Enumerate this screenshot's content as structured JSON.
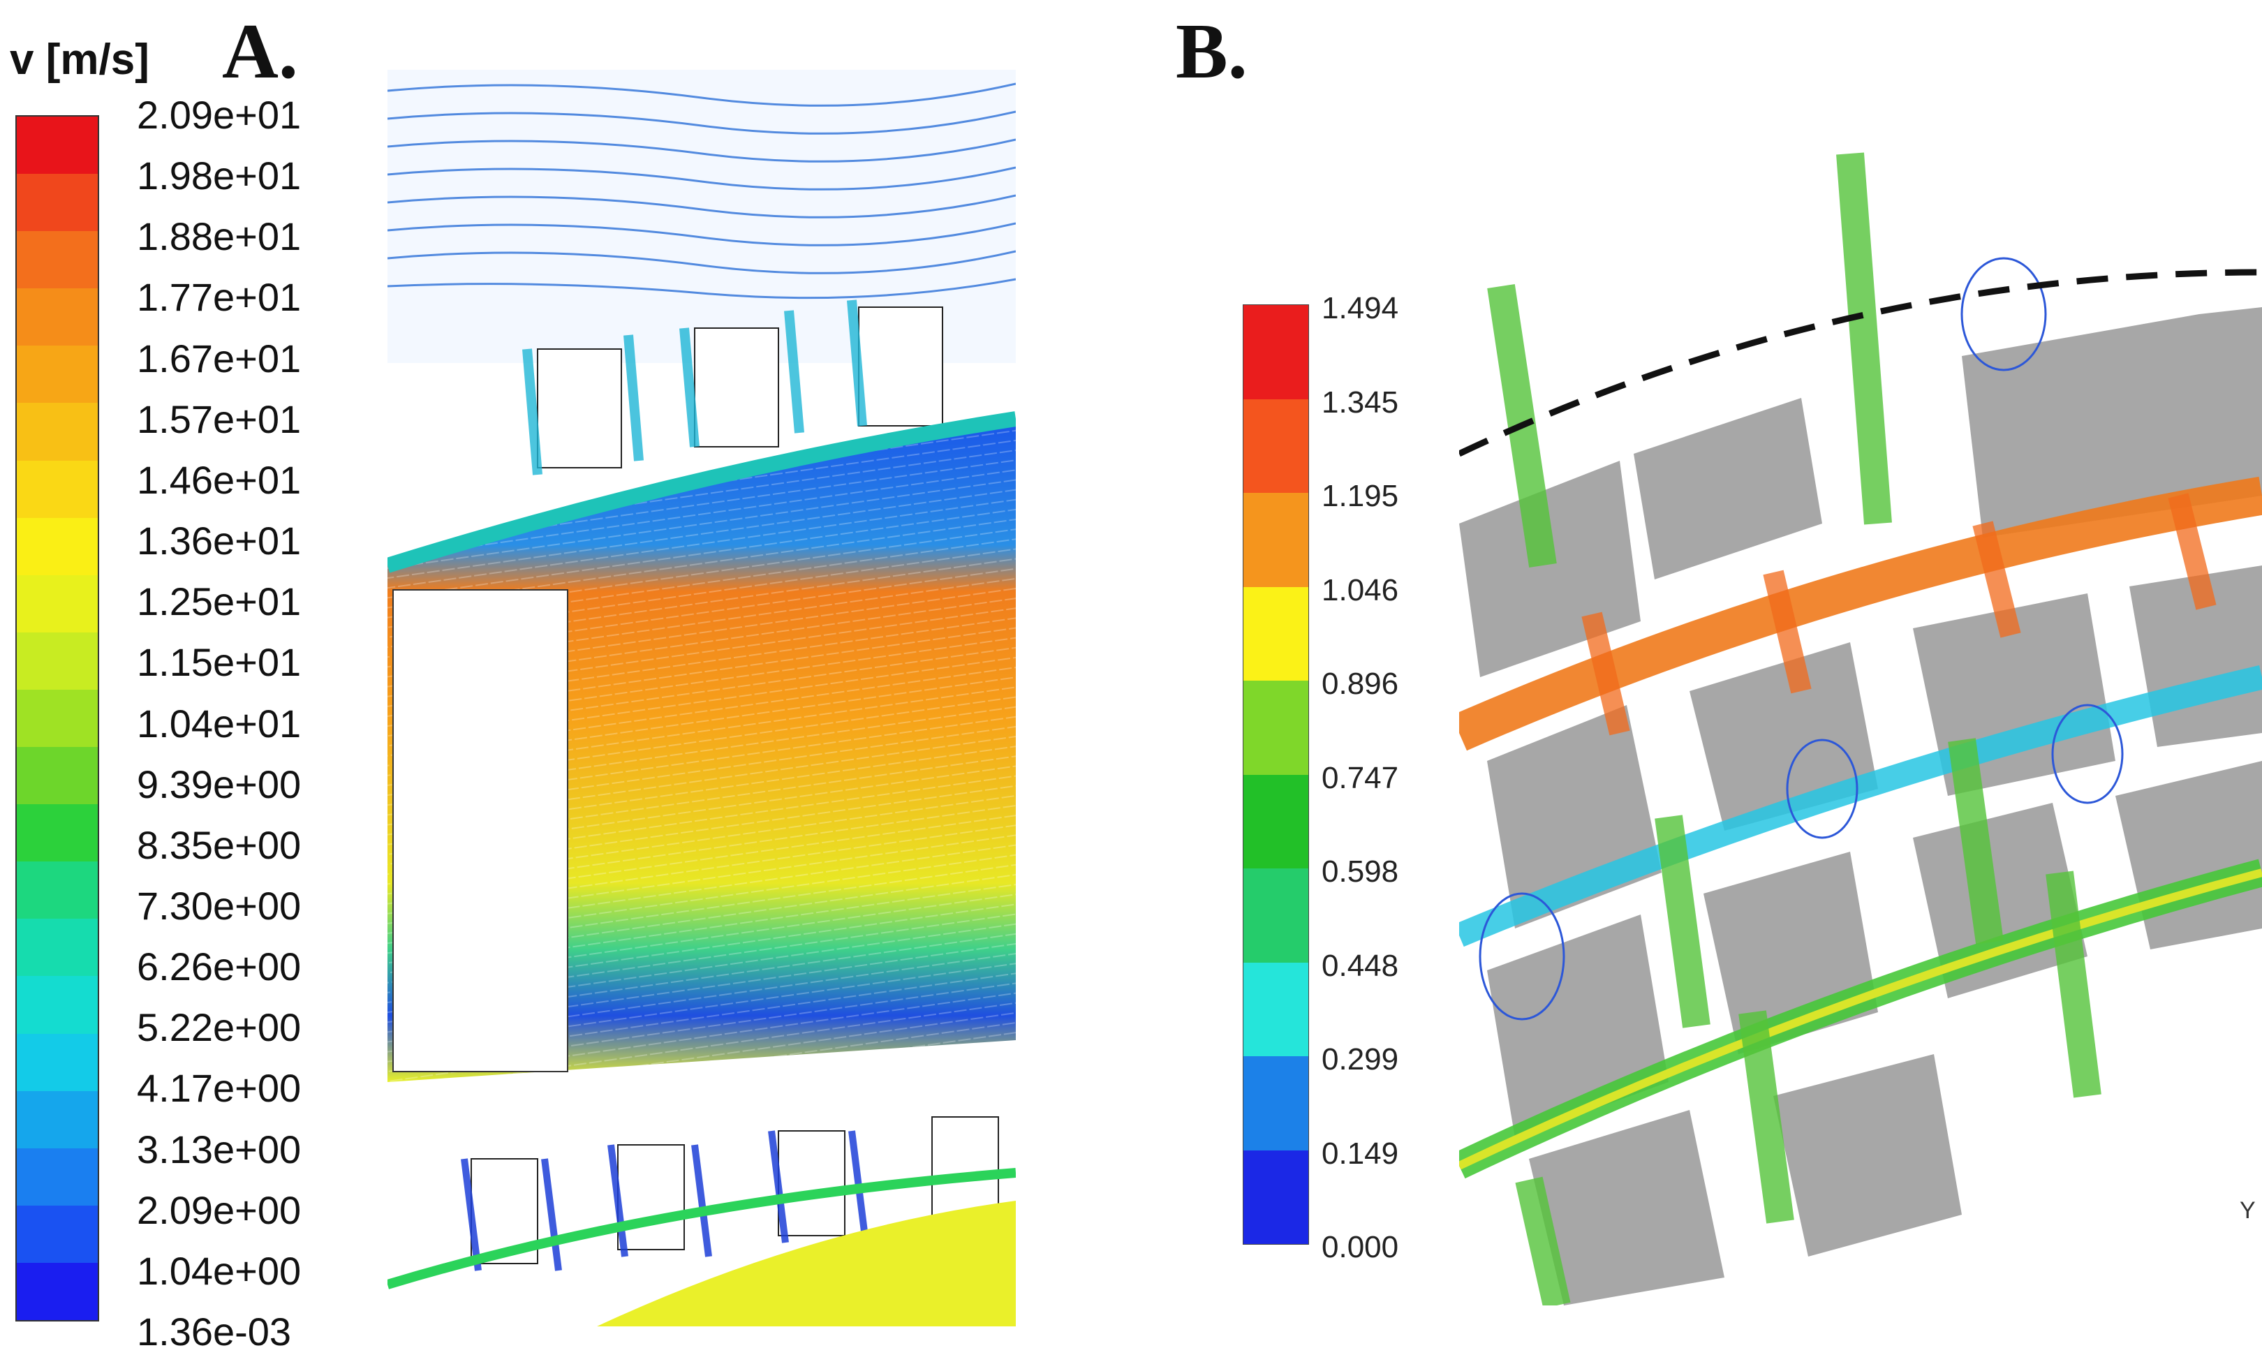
{
  "panels": {
    "a_label": "A.",
    "b_label": "B."
  },
  "colorbar_a": {
    "title": "v [m/s]",
    "ticks": [
      "2.09e+01",
      "1.98e+01",
      "1.88e+01",
      "1.77e+01",
      "1.67e+01",
      "1.57e+01",
      "1.46e+01",
      "1.36e+01",
      "1.25e+01",
      "1.15e+01",
      "1.04e+01",
      "9.39e+00",
      "8.35e+00",
      "7.30e+00",
      "6.26e+00",
      "5.22e+00",
      "4.17e+00",
      "3.13e+00",
      "2.09e+00",
      "1.04e+00",
      "1.36e-03"
    ],
    "colors": [
      "#e8141a",
      "#f0471c",
      "#f36f1c",
      "#f58d19",
      "#f7a616",
      "#f8c015",
      "#fad815",
      "#faef15",
      "#e8f11c",
      "#c8ec22",
      "#9fe224",
      "#6dd62b",
      "#2cd13b",
      "#1dd77f",
      "#16dcae",
      "#14dcd0",
      "#13cbe8",
      "#15a6ec",
      "#1a7ff0",
      "#1a52f2",
      "#1a1ef0"
    ]
  },
  "colorbar_b": {
    "ticks": [
      "1.494",
      "1.345",
      "1.195",
      "1.046",
      "0.896",
      "0.747",
      "0.598",
      "0.448",
      "0.299",
      "0.149",
      "0.000"
    ],
    "colors": [
      "#ea1d1d",
      "#f4551e",
      "#f5951d",
      "#fbf217",
      "#7fd72a",
      "#22c028",
      "#25cc6b",
      "#25e5da",
      "#1c81e8",
      "#1b28e6"
    ]
  },
  "field_b": {
    "axis_glyph": "Y"
  }
}
